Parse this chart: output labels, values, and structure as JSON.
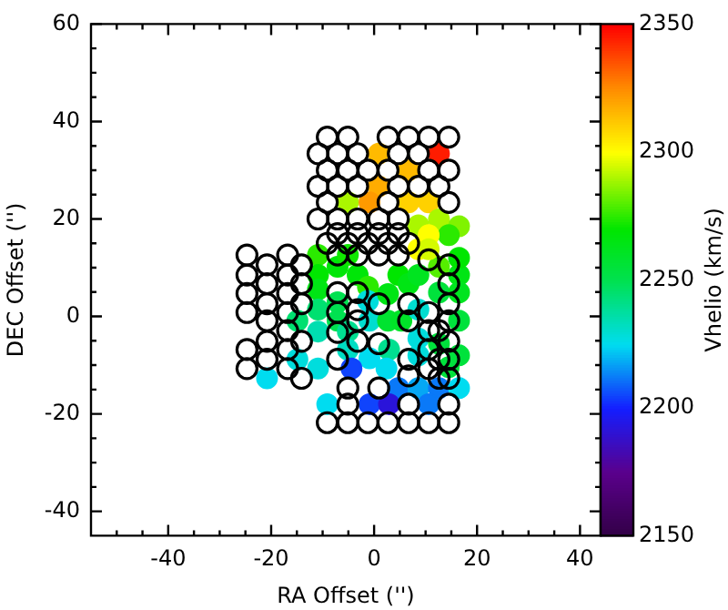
{
  "chart_data": {
    "type": "scatter",
    "xlabel": "RA Offset ('')",
    "ylabel": "DEC Offset ('')",
    "clabel": "Vhelio (km/s)",
    "xlim": [
      -55,
      44
    ],
    "ylim": [
      -45,
      60
    ],
    "xticks": [
      {
        "value": -50,
        "label": null
      },
      {
        "value": -45,
        "label": null
      },
      -40,
      {
        "value": -35,
        "label": null
      },
      {
        "value": -30,
        "label": null
      },
      {
        "value": -25,
        "label": null
      },
      -20,
      {
        "value": -15,
        "label": null
      },
      {
        "value": -10,
        "label": null
      },
      {
        "value": -5,
        "label": null
      },
      0,
      {
        "value": 5,
        "label": null
      },
      {
        "value": 10,
        "label": null
      },
      {
        "value": 15,
        "label": null
      },
      20,
      {
        "value": 25,
        "label": null
      },
      {
        "value": 30,
        "label": null
      },
      {
        "value": 35,
        "label": null
      },
      40
    ],
    "yticks": [
      -40,
      {
        "value": -35,
        "label": null
      },
      {
        "value": -30,
        "label": null
      },
      {
        "value": -25,
        "label": null
      },
      -20,
      {
        "value": -15,
        "label": null
      },
      {
        "value": -10,
        "label": null
      },
      {
        "value": -5,
        "label": null
      },
      0,
      {
        "value": 5,
        "label": null
      },
      {
        "value": 10,
        "label": null
      },
      {
        "value": 15,
        "label": null
      },
      20,
      {
        "value": 25,
        "label": null
      },
      {
        "value": 30,
        "label": null
      },
      {
        "value": 35,
        "label": null
      },
      40,
      {
        "value": 45,
        "label": null
      },
      {
        "value": 50,
        "label": null
      },
      {
        "value": 55,
        "label": null
      },
      60
    ],
    "clim": [
      2150,
      2350
    ],
    "cticks": [
      2150,
      2200,
      2250,
      2300,
      2350
    ],
    "grid": false,
    "legend": false,
    "marker": "circle",
    "series": [
      {
        "color": "#000000",
        "x": [
          -9.1,
          -5.1,
          2.7,
          6.7,
          10.6,
          14.5,
          -10.9,
          -7.1,
          -3.2,
          4.7,
          8.6,
          -9.1,
          -5.1,
          -1.2,
          2.7,
          10.6,
          14.5,
          -10.9,
          -7.1,
          -3.2,
          4.7,
          8.6,
          12.6,
          -9.1,
          2.7,
          14.5,
          -10.9,
          -7.1,
          -3.2,
          0.9,
          4.7,
          -7.1,
          -3.2,
          0.9,
          4.7,
          -9.1,
          -5.1,
          -1.2,
          2.7,
          6.7,
          -7.1,
          -3.2,
          0.9,
          4.7,
          -24.7,
          -24.7,
          -24.7,
          -24.7,
          -24.7,
          -24.7,
          -20.8,
          -20.8,
          -20.8,
          -20.8,
          -20.8,
          -20.8,
          -16.8,
          -16.8,
          -16.8,
          -16.8,
          -16.8,
          -16.8,
          -16.8,
          -14.1,
          -14.1,
          -14.1,
          -14.1,
          -14.1,
          14.5,
          14.5,
          14.5,
          14.5,
          14.5,
          14.5,
          14.5,
          10.6,
          10.6,
          10.6,
          10.6,
          10.6,
          -7.1,
          -7.1,
          -7.1,
          -7.1,
          -3.2,
          -3.2,
          -3.2,
          -3.2,
          0.9,
          0.9,
          6.7,
          6.7,
          6.7,
          6.7,
          12.6,
          12.6,
          12.6,
          -5.1,
          0.9,
          -5.1,
          6.7,
          14.5,
          -9.1,
          -5.1,
          -1.2,
          2.7,
          6.7,
          10.6,
          14.5
        ],
        "values": [
          36.8,
          36.8,
          36.8,
          36.8,
          36.8,
          36.8,
          33.4,
          33.4,
          33.4,
          33.4,
          33.4,
          30,
          30,
          30,
          30,
          30,
          30,
          26.7,
          26.7,
          26.7,
          26.7,
          26.7,
          26.7,
          23.4,
          23.4,
          23.4,
          20,
          20,
          20,
          20,
          20,
          17,
          17,
          17,
          17,
          15,
          15,
          15,
          15,
          15,
          12.6,
          12.6,
          12.6,
          12.6,
          12.6,
          8.5,
          4.7,
          0.8,
          -6.8,
          -10.7,
          10.6,
          6.7,
          2.6,
          -0.9,
          -5.1,
          -8.8,
          12.6,
          8.5,
          4.7,
          0.8,
          -2.9,
          -6.8,
          -10.7,
          10.6,
          6.7,
          2.6,
          -5.1,
          -12.7,
          10.6,
          6.7,
          2.6,
          -0.9,
          -5.1,
          -8.8,
          -12.7,
          11.6,
          0.8,
          -2.9,
          -6.8,
          -10.7,
          4.9,
          0.8,
          -3.3,
          -8.8,
          4.9,
          1.4,
          -0.9,
          -5.1,
          2.6,
          -5.6,
          2.6,
          -0.9,
          -8.8,
          -12.2,
          -2.9,
          -8.8,
          -12.7,
          -14.7,
          -14.7,
          -18,
          -18,
          -18,
          -21.8,
          -21.8,
          -21.8,
          -21.8,
          -21.8,
          -21.8,
          -21.8
        ]
      },
      {
        "x": [
          0.9,
          12.6,
          6.7,
          0.9,
          -5.1,
          -0.9,
          6.7,
          10.6,
          8.6,
          12.6,
          16.5,
          14.5,
          10.6,
          8.6,
          -10.9,
          -10.9,
          -10.9,
          -10.9,
          -14.9,
          -10.9,
          -14.9,
          -10.9,
          -20.8,
          -7.1,
          -5.1,
          -7.1,
          -7.1,
          -3.2,
          -1.2,
          -5.1,
          -5.1,
          -1.2,
          -0.9,
          -0.9,
          -4.4,
          2.7,
          2.7,
          2.9,
          2.4,
          4.7,
          5.3,
          6.7,
          8.6,
          8.6,
          8.6,
          8.6,
          12.6,
          12.6,
          16.5,
          16.5,
          16.5,
          16.5,
          16.5,
          14.5,
          4.7,
          8.6,
          12.6,
          16.5,
          -9.1,
          -0.9,
          2.9,
          10.6,
          12.6,
          10.6
        ],
        "values": [
          33.4,
          33.4,
          30,
          26.7,
          23.4,
          23.4,
          23.4,
          23.4,
          18.7,
          19.9,
          18.5,
          16.7,
          16.7,
          13.8,
          12.6,
          8.5,
          5.5,
          1.4,
          -0.9,
          -3.1,
          -8.8,
          -10.7,
          -12.7,
          10.2,
          12.6,
          2.9,
          -0.9,
          8.5,
          6.1,
          -3.1,
          -6.8,
          3.2,
          -0.9,
          -8.6,
          -10.7,
          4.6,
          -0.9,
          -6.8,
          -10.7,
          8.5,
          -0.9,
          6.7,
          8.5,
          1.4,
          -4.5,
          -8,
          4.9,
          -5.6,
          8.5,
          12,
          4.9,
          -0.9,
          -8,
          -10.4,
          -14.7,
          -14.7,
          -14.7,
          -14.7,
          -18,
          -18,
          -18,
          -18,
          10.2,
          13.8
        ],
        "colors": [
          "#ffba00",
          "#ff1c00",
          "#ffba00",
          "#ffac00",
          "#aaf700",
          "#ff9a00",
          "#ffd100",
          "#ffd100",
          "#aaf700",
          "#aaf700",
          "#80f300",
          "#2bea00",
          "#ffff00",
          "#ffff00",
          "#2bea00",
          "#00e600",
          "#00e514",
          "#00e070",
          "#00e070",
          "#00deb0",
          "#00dddd",
          "#00dddd",
          "#00dcf0",
          "#00e608",
          "#11e800",
          "#00e150",
          "#00e150",
          "#00e608",
          "#2bea00",
          "#00df90",
          "#00ddc3",
          "#00dddd",
          "#00ddd0",
          "#00dcf0",
          "#1044fc",
          "#00e514",
          "#00e330",
          "#00df90",
          "#00dcf0",
          "#00e600",
          "#00e428",
          "#00e514",
          "#00e420",
          "#00ddd0",
          "#00dddd",
          "#00dddd",
          "#00e23c",
          "#00e23c",
          "#00e514",
          "#00e600",
          "#00e420",
          "#00e23c",
          "#00e23c",
          "#00e23c",
          "#0a79f8",
          "#06a7f4",
          "#0a79f8",
          "#00dcf0",
          "#00dcf0",
          "#1044fc",
          "#2a14da",
          "#0a79f8",
          "#55ee00",
          "#d5fb00"
        ],
        "cvalues": [
          2315,
          2345,
          2315,
          2318,
          2290,
          2322,
          2310,
          2310,
          2290,
          2290,
          2285,
          2275,
          2300,
          2300,
          2275,
          2270,
          2265,
          2245,
          2245,
          2235,
          2228,
          2228,
          2225,
          2268,
          2272,
          2250,
          2250,
          2268,
          2275,
          2240,
          2232,
          2228,
          2230,
          2225,
          2205,
          2265,
          2258,
          2240,
          2225,
          2270,
          2260,
          2265,
          2262,
          2230,
          2228,
          2228,
          2255,
          2255,
          2265,
          2270,
          2262,
          2255,
          2255,
          2255,
          2212,
          2218,
          2212,
          2225,
          2225,
          2205,
          2192,
          2212,
          2280,
          2295
        ]
      }
    ]
  }
}
